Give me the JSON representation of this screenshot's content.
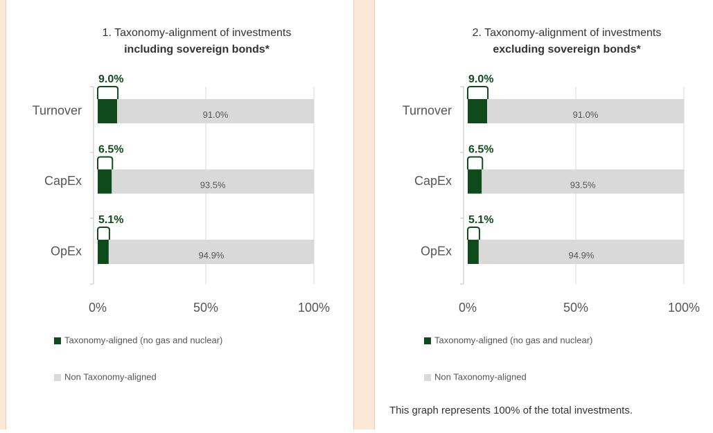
{
  "chart_data": [
    {
      "type": "bar",
      "orientation": "horizontal",
      "stacked": true,
      "title": "1. Taxonomy-alignment of investments",
      "subtitle": "including sovereign bonds*",
      "categories": [
        "Turnover",
        "CapEx",
        "OpEx"
      ],
      "series": [
        {
          "name": "Taxonomy-aligned (no gas and nuclear)",
          "color": "#0f4a1a",
          "values": [
            9.0,
            6.5,
            5.1
          ],
          "value_labels": [
            "9.0%",
            "6.5%",
            "5.1%"
          ]
        },
        {
          "name": "Non Taxonomy-aligned",
          "color": "#d9d9d9",
          "values": [
            91.0,
            93.5,
            94.9
          ],
          "value_labels": [
            "91.0%",
            "93.5%",
            "94.9%"
          ]
        }
      ],
      "xlim": [
        0,
        100
      ],
      "xticks": [
        {
          "value": 0,
          "label": "0%"
        },
        {
          "value": 50,
          "label": "50%"
        },
        {
          "value": 100,
          "label": "100%"
        }
      ],
      "grid": true,
      "legend": "bottom"
    },
    {
      "type": "bar",
      "orientation": "horizontal",
      "stacked": true,
      "title": "2. Taxonomy-alignment of investments",
      "subtitle": "excluding sovereign bonds*",
      "categories": [
        "Turnover",
        "CapEx",
        "OpEx"
      ],
      "series": [
        {
          "name": "Taxonomy-aligned (no gas and nuclear)",
          "color": "#0f4a1a",
          "values": [
            9.0,
            6.5,
            5.1
          ],
          "value_labels": [
            "9.0%",
            "6.5%",
            "5.1%"
          ]
        },
        {
          "name": "Non Taxonomy-aligned",
          "color": "#d9d9d9",
          "values": [
            91.0,
            93.5,
            94.9
          ],
          "value_labels": [
            "91.0%",
            "93.5%",
            "94.9%"
          ]
        }
      ],
      "xlim": [
        0,
        100
      ],
      "xticks": [
        {
          "value": 0,
          "label": "0%"
        },
        {
          "value": 50,
          "label": "50%"
        },
        {
          "value": 100,
          "label": "100%"
        }
      ],
      "grid": true,
      "legend": "bottom",
      "annotation": "This graph represents 100% of the total investments."
    }
  ]
}
